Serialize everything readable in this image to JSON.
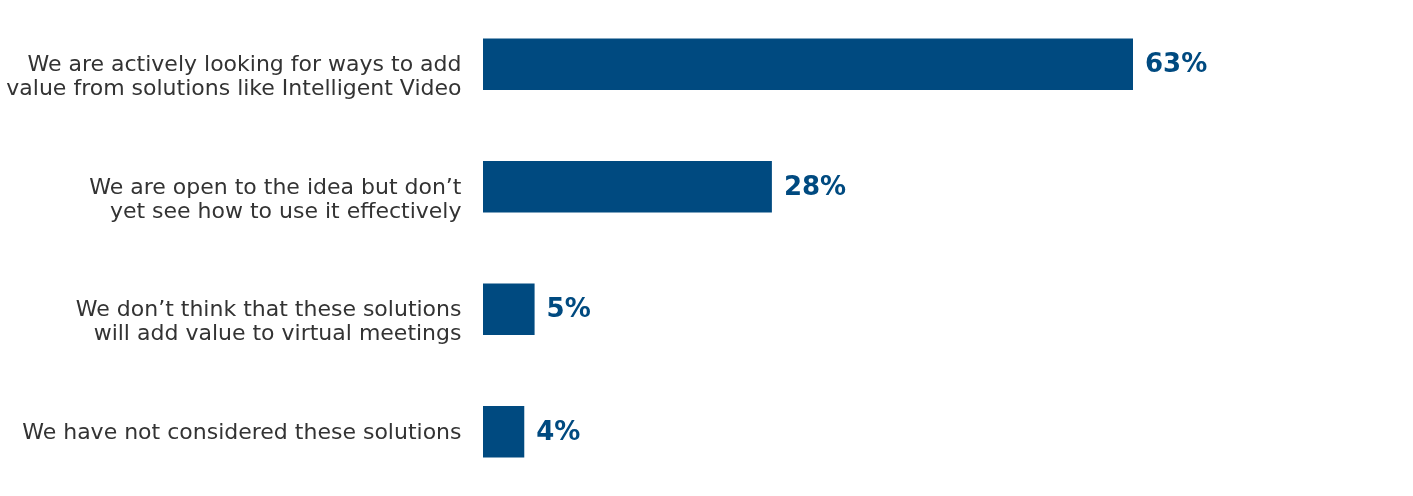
{
  "chart_data": {
    "type": "bar",
    "orientation": "horizontal",
    "categories": [
      "We are actively looking for ways to add value from solutions like Intelligent Video",
      "We are open to the idea but don’t yet see how to use it effectively",
      "We don’t think that these solutions will add value to virtual meetings",
      "We have not considered these solutions"
    ],
    "values": [
      63,
      28,
      5,
      4
    ],
    "value_labels": [
      "63%",
      "28%",
      "5%",
      "4%"
    ],
    "color": "#004a80"
  }
}
